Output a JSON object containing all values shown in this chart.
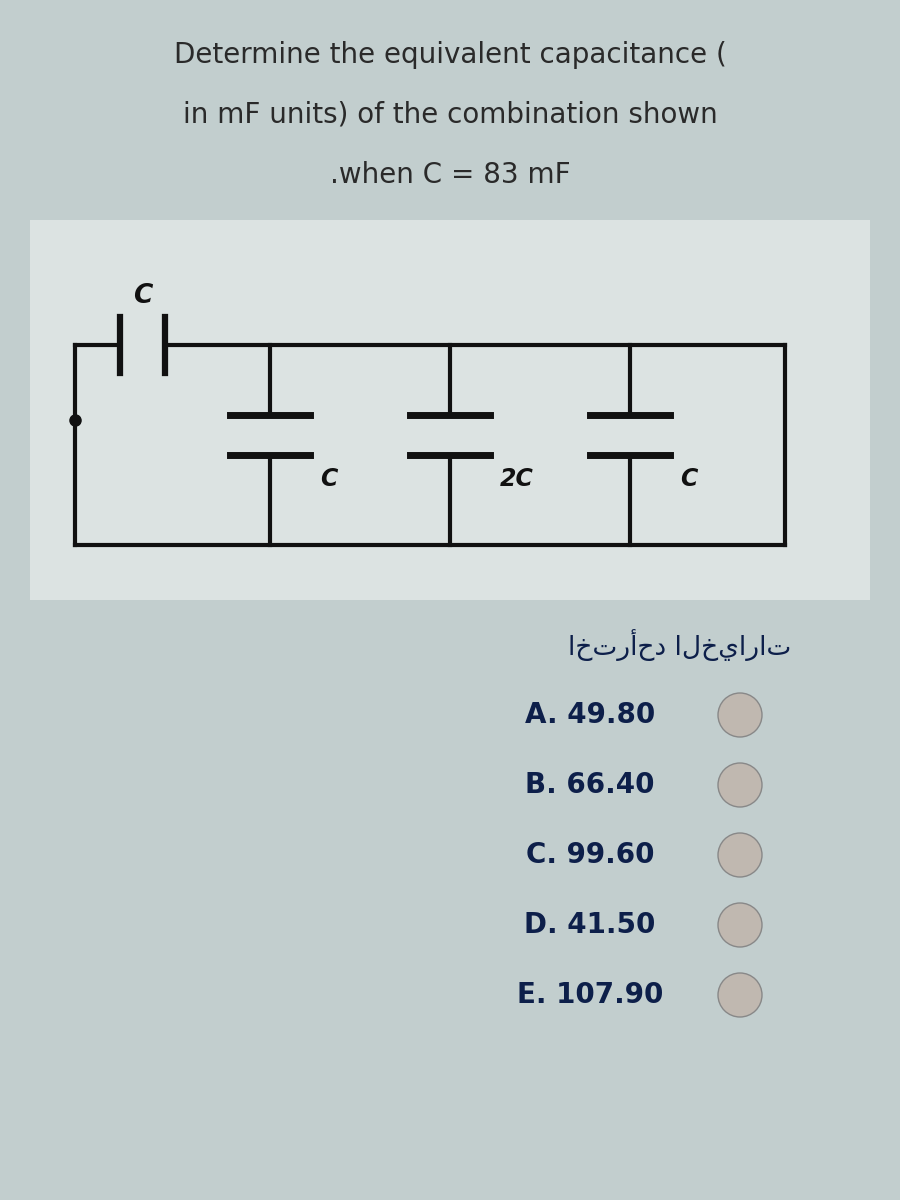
{
  "title_line1": "Determine the equivalent capacitance (",
  "title_line2": "in mF units) of the combination shown",
  "title_line3": ".when C = 83 mF",
  "arabic_text": "اخترأحد الخيارات",
  "options": [
    "A. 49.80",
    "B. 66.40",
    "C. 99.60",
    "D. 41.50",
    "E. 107.90"
  ],
  "bg_color": "#c2cece",
  "circuit_bg": "#dce3e2",
  "text_color": "#0d1f4a",
  "title_color": "#2a2a2a",
  "circuit_line_color": "#111111",
  "radio_color": "#c0b8b0",
  "font_size_title": 20,
  "font_size_options": 20,
  "font_size_arabic": 19,
  "font_size_labels": 15,
  "font_size_cap_label": 17
}
